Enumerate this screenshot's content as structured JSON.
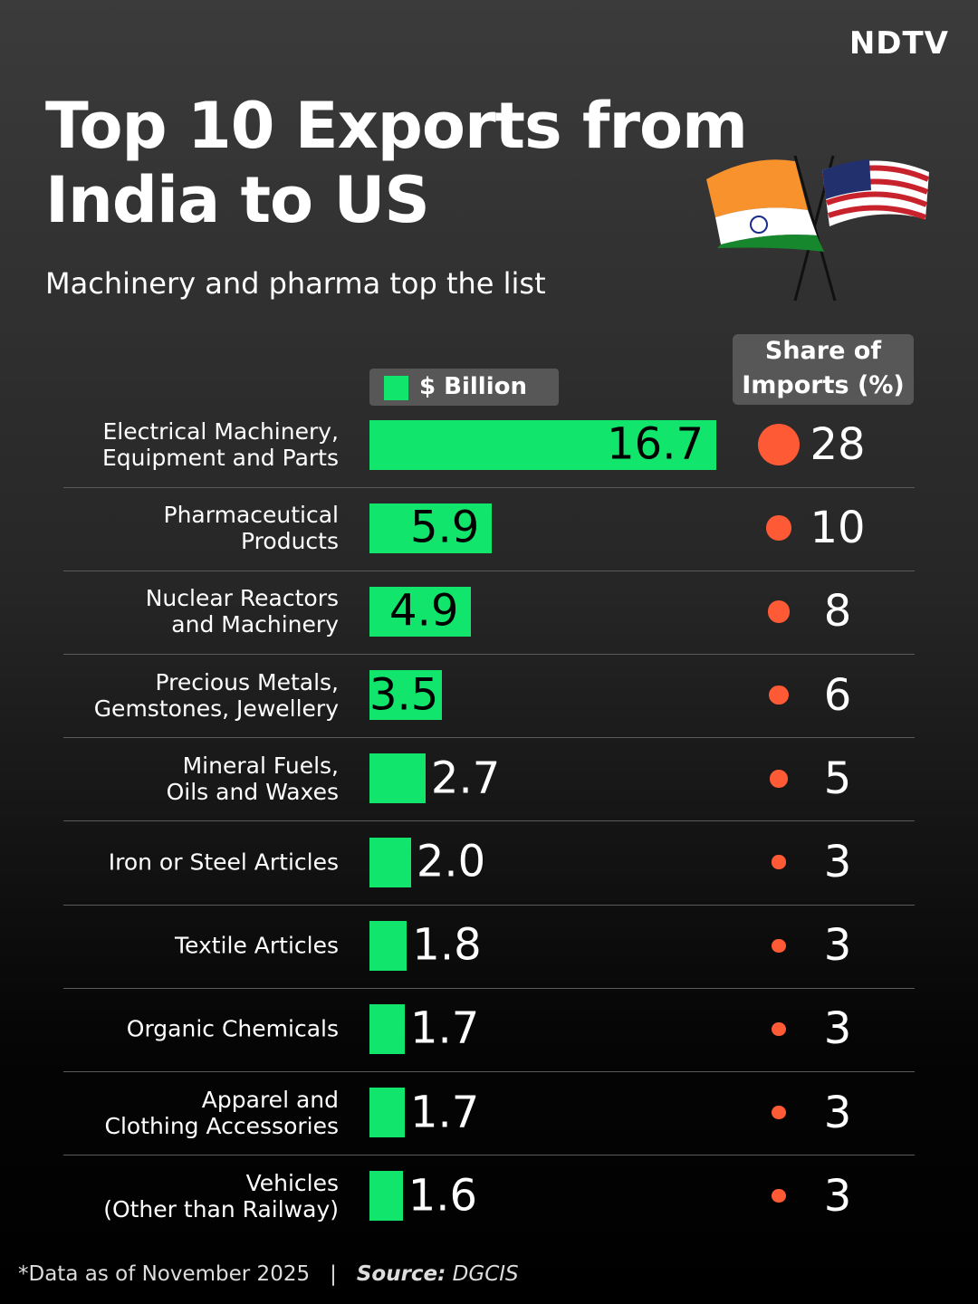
{
  "brand": "NDTV",
  "chart_data": {
    "type": "bar",
    "title": "Top 10 Exports from\nIndia to US",
    "subtitle": "Machinery and pharma top the list",
    "categories": [
      "Electrical Machinery,\nEquipment and Parts",
      "Pharmaceutical\nProducts",
      "Nuclear Reactors\nand Machinery",
      "Precious Metals,\nGemstones, Jewellery",
      "Mineral Fuels,\nOils and Waxes",
      "Iron or Steel Articles",
      "Textile Articles",
      "Organic Chemicals",
      "Apparel and\nClothing Accessories",
      "Vehicles\n(Other than Railway)"
    ],
    "series": [
      {
        "name": "$ Billion",
        "color": "#12e56b",
        "values": [
          16.7,
          5.9,
          4.9,
          3.5,
          2.7,
          2.0,
          1.8,
          1.7,
          1.7,
          1.6
        ],
        "value_labels": [
          "16.7",
          "5.9",
          "4.9",
          "3.5",
          "2.7",
          "2.0",
          "1.8",
          "1.7",
          "1.7",
          "1.6"
        ]
      },
      {
        "name": "Share of\nImports (%)",
        "color": "#ff5a36",
        "values": [
          28,
          10,
          8,
          6,
          5,
          3,
          3,
          3,
          3,
          3
        ]
      }
    ],
    "footnote": "*Data as of November 2025",
    "source_label": "Source:",
    "source": "DGCIS"
  }
}
